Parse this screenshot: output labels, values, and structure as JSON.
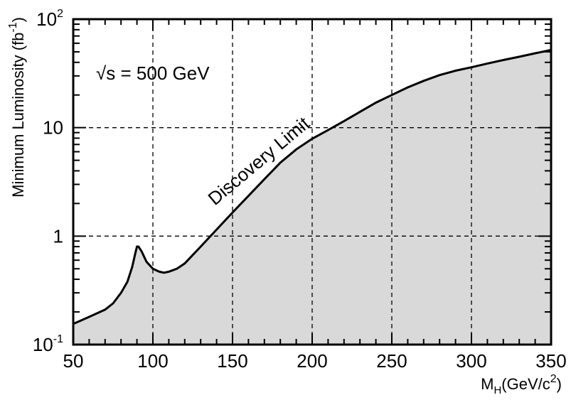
{
  "chart_data": {
    "type": "area",
    "title": "",
    "xlabel": "M_H(GeV/c^2)",
    "xlabel_main": "M",
    "xlabel_sub": "H",
    "xlabel_unit": "(GeV/c",
    "xlabel_unit_sup": "2",
    "xlabel_unit_close": ")",
    "ylabel": "Minimum Luminosity (fb^-1)",
    "ylabel_main": "Minimum Luminosity  (fb",
    "ylabel_sup": "-1",
    "ylabel_close": ")",
    "xlim": [
      50,
      350
    ],
    "ylim": [
      0.1,
      100
    ],
    "yscale": "log",
    "grid": true,
    "fill_color": "#d9d9d9",
    "x_ticks": [
      50,
      100,
      150,
      200,
      250,
      300,
      350
    ],
    "x_tick_labels": [
      "50",
      "100",
      "150",
      "200",
      "250",
      "300",
      "350"
    ],
    "y_tick_labels": [
      {
        "value": 0.1,
        "base": "10",
        "exp": "-1"
      },
      {
        "value": 1,
        "base": "1",
        "exp": ""
      },
      {
        "value": 10,
        "base": "10",
        "exp": ""
      },
      {
        "value": 100,
        "base": "10",
        "exp": "2"
      }
    ],
    "annotations": {
      "energy": "√s = 500 GeV",
      "curve_label": "Discovery Limit"
    },
    "series": [
      {
        "x": [
          50,
          60,
          70,
          75,
          80,
          84,
          87,
          89,
          90,
          91,
          93,
          96,
          100,
          104,
          107,
          110,
          115,
          120,
          130,
          140,
          150,
          160,
          170,
          180,
          190,
          200,
          210,
          220,
          230,
          240,
          250,
          260,
          270,
          280,
          290,
          300,
          310,
          320,
          330,
          340,
          350
        ],
        "y": [
          0.155,
          0.18,
          0.21,
          0.24,
          0.3,
          0.38,
          0.52,
          0.7,
          0.8,
          0.8,
          0.72,
          0.58,
          0.5,
          0.47,
          0.46,
          0.47,
          0.5,
          0.56,
          0.8,
          1.15,
          1.65,
          2.35,
          3.35,
          4.75,
          6.3,
          7.9,
          9.5,
          11.5,
          14.0,
          17.0,
          20.0,
          23.5,
          27.0,
          30.5,
          33.5,
          36.0,
          39.0,
          42.0,
          45.0,
          48.5,
          52.0
        ]
      }
    ]
  }
}
